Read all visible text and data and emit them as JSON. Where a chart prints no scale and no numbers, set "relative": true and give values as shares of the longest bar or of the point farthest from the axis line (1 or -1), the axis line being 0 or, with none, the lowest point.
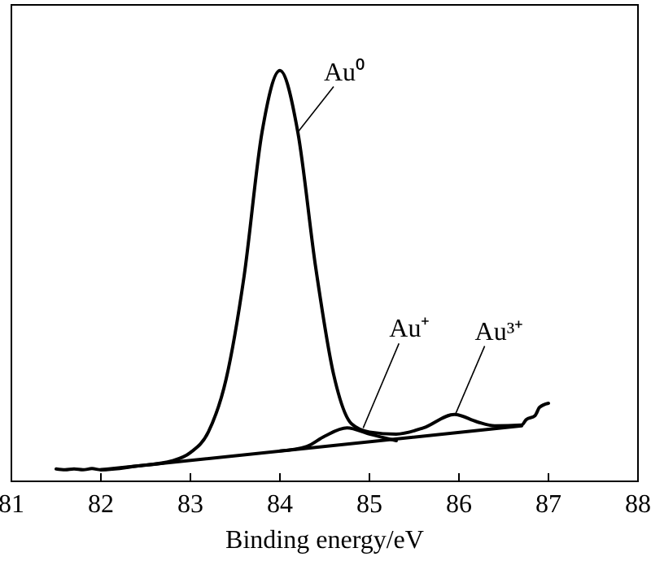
{
  "chart_data": {
    "type": "line",
    "xlabel": "Binding energy/eV",
    "relative": true,
    "tick_labels": "x",
    "xlim": [
      81,
      88
    ],
    "xticks": [
      81,
      82,
      83,
      84,
      85,
      86,
      87,
      88
    ],
    "line_style": "solid",
    "grid": false,
    "series": [
      {
        "color": "#000000",
        "x": [
          81.5,
          81.6,
          81.7,
          81.8,
          81.9,
          82.0,
          82.4,
          82.8,
          83.0,
          83.2,
          83.4,
          83.6,
          83.8,
          84.0,
          84.2,
          84.4,
          84.6,
          84.8,
          85.0,
          85.3,
          85.6,
          85.95,
          86.2,
          86.4,
          86.7,
          86.75,
          86.85,
          86.9,
          87.0
        ],
        "values": [
          0.03,
          0.028,
          0.03,
          0.028,
          0.031,
          0.028,
          0.037,
          0.05,
          0.07,
          0.12,
          0.25,
          0.5,
          0.85,
          1.0,
          0.85,
          0.52,
          0.26,
          0.14,
          0.12,
          0.115,
          0.13,
          0.163,
          0.145,
          0.135,
          0.137,
          0.15,
          0.16,
          0.18,
          0.19
        ]
      },
      {
        "color": "#000000",
        "x": [
          82,
          86.7
        ],
        "values": [
          0.028,
          0.135
        ]
      },
      {
        "color": "#000000",
        "x": [
          84.0,
          84.3,
          84.5,
          84.75,
          85.0,
          85.3
        ],
        "values": [
          0.074,
          0.085,
          0.11,
          0.13,
          0.115,
          0.099
        ]
      }
    ],
    "annotations": [
      {
        "text": "Au⁰",
        "x": 84.2,
        "y": 0.85
      },
      {
        "text": "Au⁺",
        "x": 84.93,
        "y": 0.13
      },
      {
        "text": "Au³⁺",
        "x": 85.96,
        "y": 0.163
      }
    ]
  }
}
